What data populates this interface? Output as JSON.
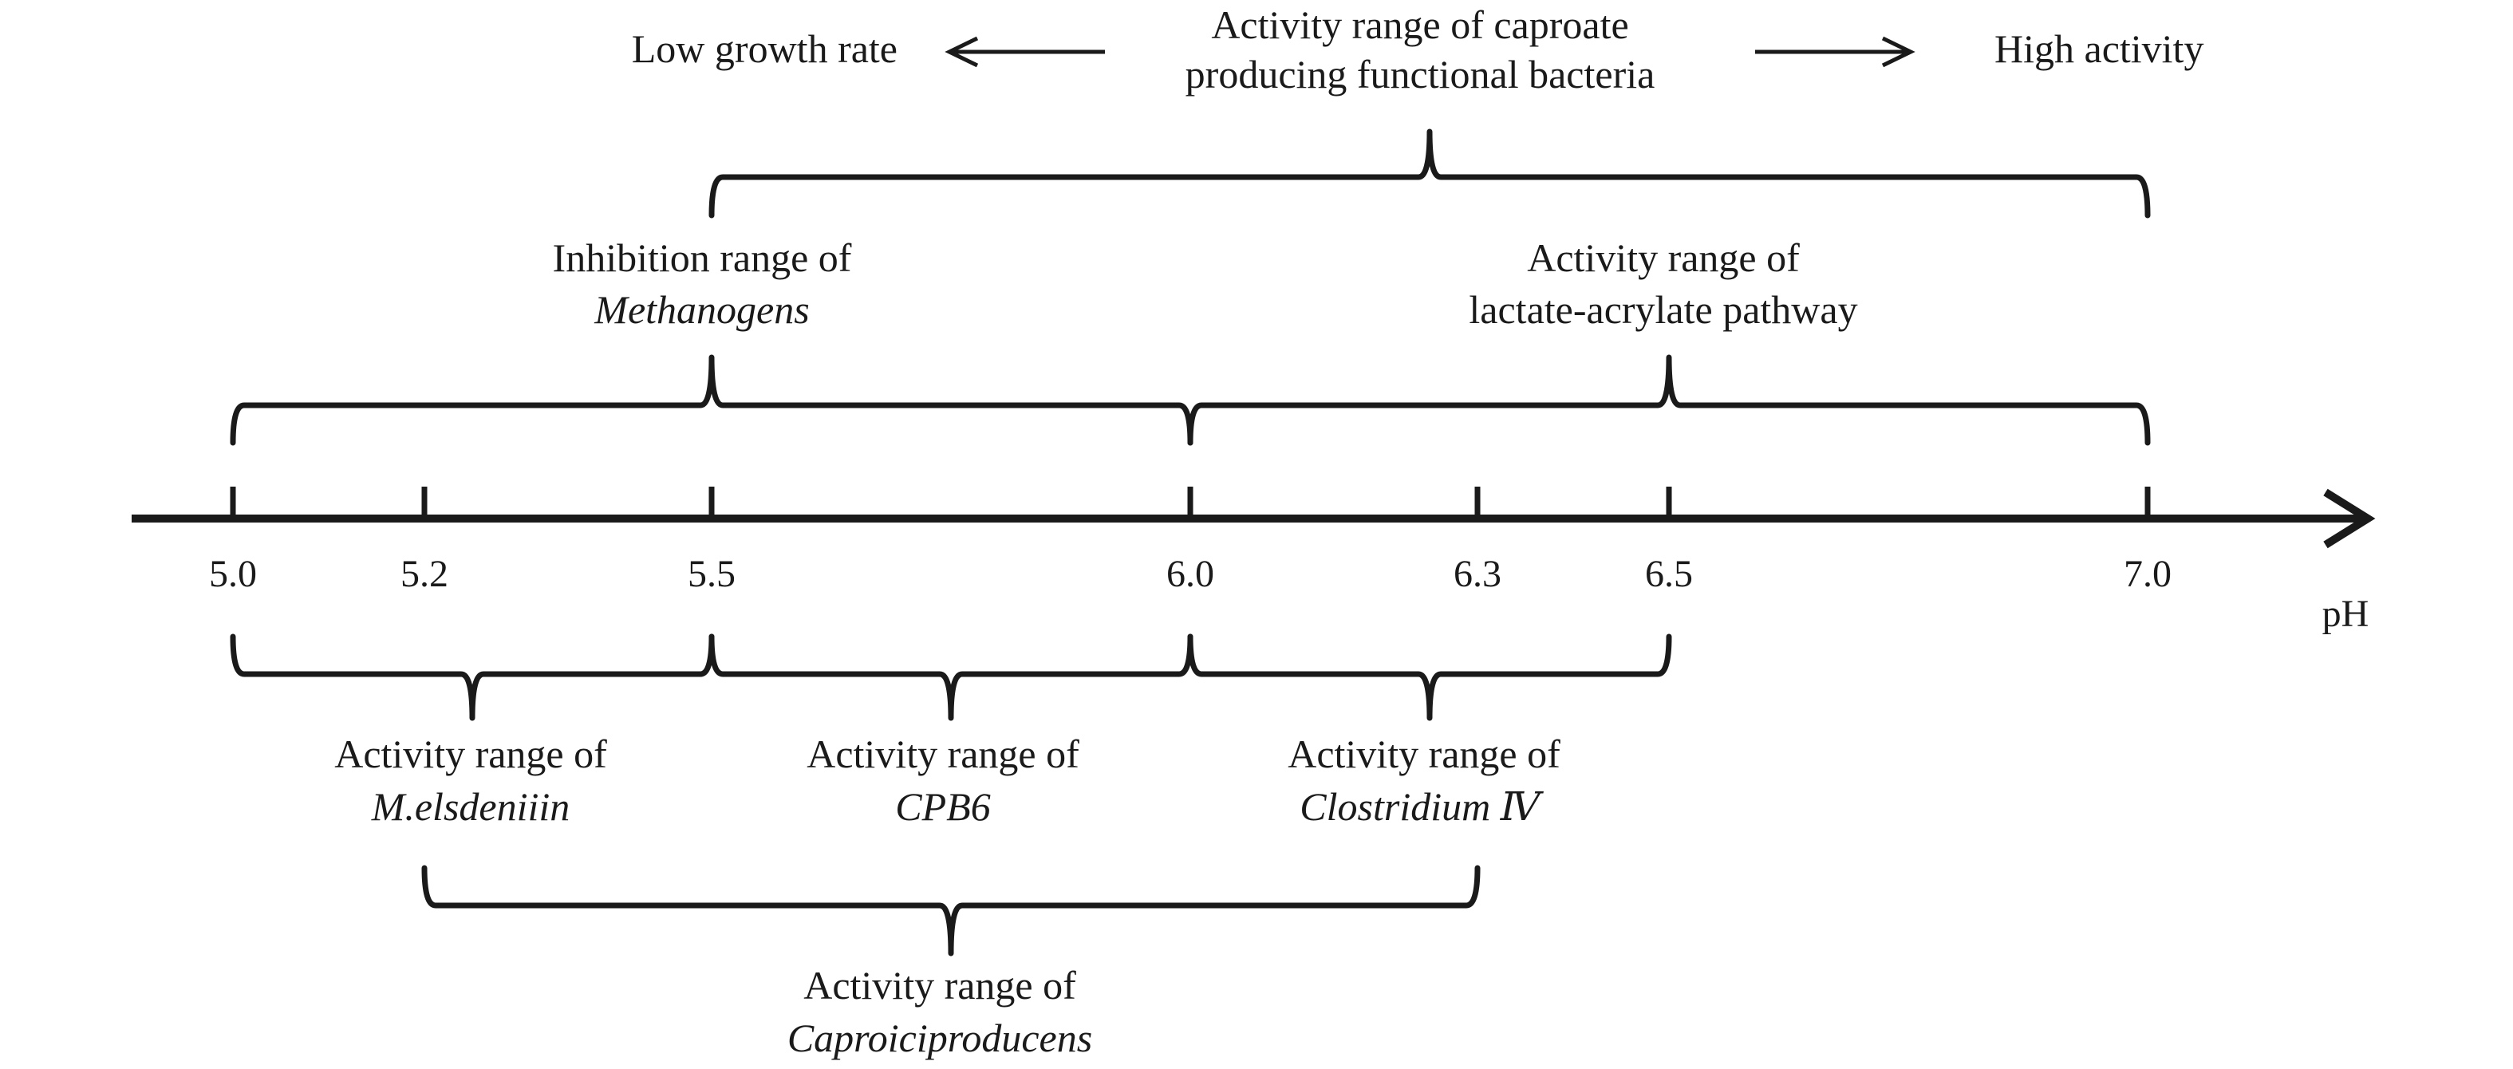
{
  "axis": {
    "unit_label": "pH",
    "ticks": [
      "5.0",
      "5.2",
      "5.5",
      "6.0",
      "6.3",
      "6.5",
      "7.0"
    ]
  },
  "top_banner": {
    "left_label": "Low growth rate",
    "center_line1": "Activity range of caproate",
    "center_line2": "producing functional bacteria",
    "right_label": "High activity"
  },
  "ranges": {
    "caproate_bacteria": {
      "from": 5.5,
      "to": 7.0
    },
    "methanogens": {
      "from": 5.0,
      "to": 6.0,
      "line1": "Inhibition range of",
      "line2": "Methanogens"
    },
    "lactate_acrylate": {
      "from": 6.0,
      "to": 7.0,
      "line1": "Activity range of",
      "line2": "lactate-acrylate pathway"
    },
    "m_elsdenii": {
      "from": 5.0,
      "to": 5.5,
      "line1": "Activity range of",
      "line2": "M.elsdeniiin"
    },
    "cpb6": {
      "from": 5.5,
      "to": 6.0,
      "line1": "Activity range of",
      "line2": "CPB6"
    },
    "clostridium": {
      "from": 6.0,
      "to": 6.5,
      "line1": "Activity range of",
      "line2": "Clostridium Ⅳ"
    },
    "caproiciproducens": {
      "from": 5.2,
      "to": 6.3,
      "line1": "Activity range of",
      "line2": "Caproiciproducens"
    }
  }
}
